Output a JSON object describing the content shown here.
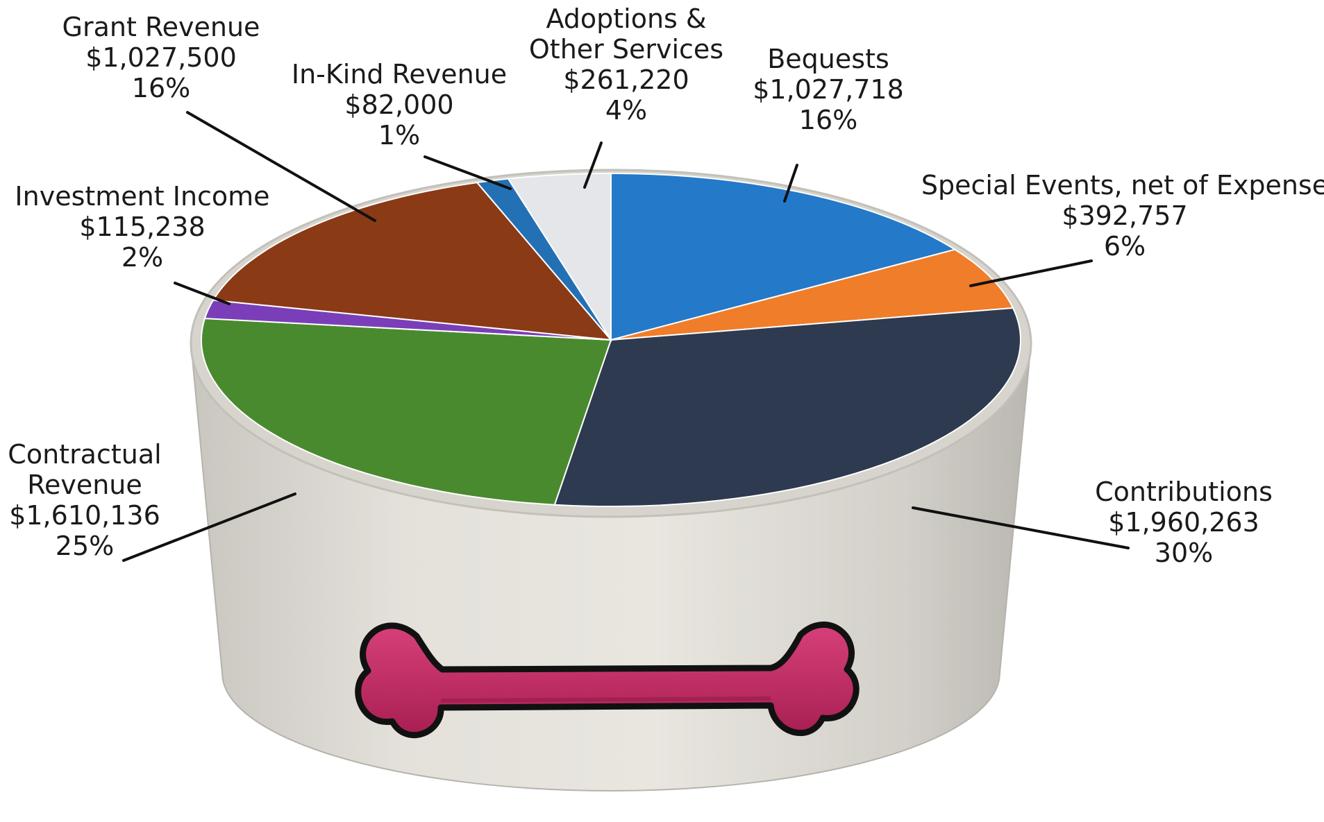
{
  "chart_data": {
    "type": "pie",
    "title": "",
    "slices": [
      {
        "label": "Bequests",
        "amount": "$1,027,718",
        "value": 1027718,
        "pct": "16%",
        "color": "#2479c9"
      },
      {
        "label": "Special Events, net of Expense",
        "amount": "$392,757",
        "value": 392757,
        "pct": "6%",
        "color": "#f07d2a"
      },
      {
        "label": "Contributions",
        "amount": "$1,960,263",
        "value": 1960263,
        "pct": "30%",
        "color": "#2d3a4f"
      },
      {
        "label": "Contractual Revenue",
        "amount": "$1,610,136",
        "value": 1610136,
        "pct": "25%",
        "color": "#4a8a2e"
      },
      {
        "label": "Investment Income",
        "amount": "$115,238",
        "value": 115238,
        "pct": "2%",
        "color": "#7a3fb8"
      },
      {
        "label": "Grant Revenue",
        "amount": "$1,027,500",
        "value": 1027500,
        "pct": "16%",
        "color": "#8b3a16"
      },
      {
        "label": "In-Kind Revenue",
        "amount": "$82,000",
        "value": 82000,
        "pct": "1%",
        "color": "#2470b5"
      },
      {
        "label": "Adoptions & Other Services",
        "amount": "$261,220",
        "value": 261220,
        "pct": "4%",
        "color": "#e4e6ea"
      }
    ]
  },
  "labels": [
    {
      "lines": [
        "Bequests",
        "$1,027,718",
        "16%"
      ]
    },
    {
      "lines": [
        "Special Events, net of Expense",
        "$392,757",
        "6%"
      ]
    },
    {
      "lines": [
        "Contributions",
        "$1,960,263",
        "30%"
      ]
    },
    {
      "lines": [
        "Contractual",
        "Revenue",
        "$1,610,136",
        "25%"
      ]
    },
    {
      "lines": [
        "Investment Income",
        "$115,238",
        "2%"
      ]
    },
    {
      "lines": [
        "Grant Revenue",
        "$1,027,500",
        "16%"
      ]
    },
    {
      "lines": [
        "In-Kind Revenue",
        "$82,000",
        "1%"
      ]
    },
    {
      "lines": [
        "Adoptions &",
        "Other Services",
        "$261,220",
        "4%"
      ]
    }
  ],
  "bowl": {
    "rim_color": "#d9d8d3",
    "body_color": "#dcdad3",
    "bone_color": "#c62a63",
    "bone_icon": "dog-bone-icon"
  }
}
